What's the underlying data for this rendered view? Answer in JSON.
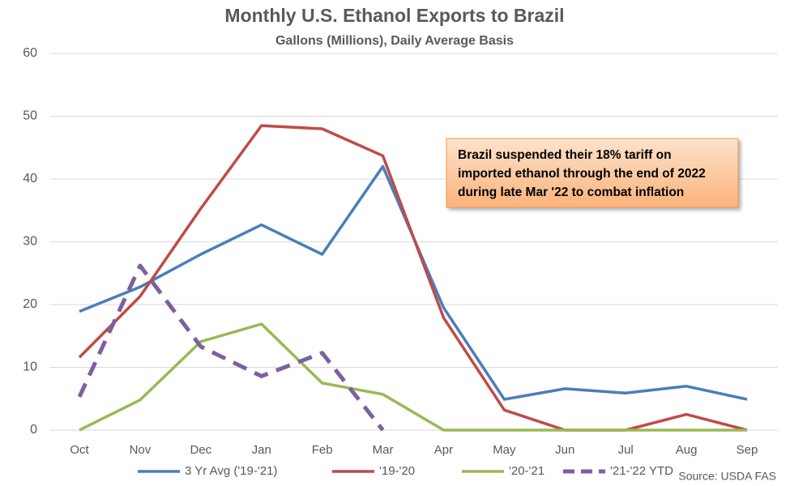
{
  "chart_data": {
    "type": "line",
    "title": "Monthly U.S. Ethanol Exports to Brazil",
    "subtitle": "Gallons (Millions), Daily Average Basis",
    "categories": [
      "Oct",
      "Nov",
      "Dec",
      "Jan",
      "Feb",
      "Mar",
      "Apr",
      "May",
      "Jun",
      "Jul",
      "Aug",
      "Sep"
    ],
    "series": [
      {
        "name": "3 Yr Avg ('19-'21)",
        "color": "#4a7ebb",
        "dashed": false,
        "values": [
          18.9,
          22.8,
          28.0,
          32.7,
          28.0,
          42.0,
          19.5,
          4.9,
          6.6,
          5.9,
          7.0,
          4.9
        ]
      },
      {
        "name": "'19-'20",
        "color": "#be4b48",
        "dashed": false,
        "values": [
          11.6,
          21.3,
          35.3,
          48.5,
          48.0,
          43.7,
          17.9,
          3.2,
          0,
          0,
          2.5,
          0
        ]
      },
      {
        "name": "'20-'21",
        "color": "#98b954",
        "dashed": false,
        "values": [
          0,
          4.8,
          14.1,
          16.9,
          7.5,
          5.7,
          0,
          0,
          0,
          0,
          0,
          0
        ]
      },
      {
        "name": "'21-'22 YTD",
        "color": "#7d60a0",
        "dashed": true,
        "values": [
          5.3,
          26.2,
          13.3,
          8.6,
          12.3,
          0,
          null,
          null,
          null,
          null,
          null,
          null
        ]
      }
    ],
    "ylim": [
      0,
      60
    ],
    "yticks": [
      0,
      10,
      20,
      30,
      40,
      50,
      60
    ],
    "grid": true,
    "legend": "bottom",
    "annotation": [
      "Brazil suspended their 18% tariff on",
      "imported ethanol through the end of 2022",
      "during late Mar '22 to combat inflation"
    ],
    "source": "Source: USDA FAS"
  }
}
